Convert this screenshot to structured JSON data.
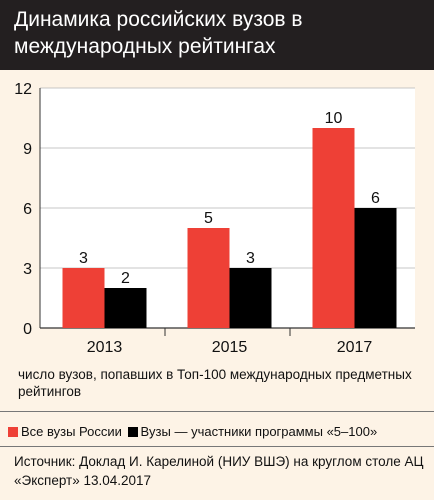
{
  "title": "Динамика российских вузов в международных рейтингах",
  "chart_data": {
    "type": "bar",
    "categories": [
      "2013",
      "2015",
      "2017"
    ],
    "series": [
      {
        "name": "Все вузы России",
        "values": [
          3,
          5,
          10
        ],
        "color": "#ee4036"
      },
      {
        "name": "Вузы — участники программы «5–100»",
        "values": [
          2,
          3,
          6
        ],
        "color": "#000000"
      }
    ],
    "ylim": [
      0,
      12
    ],
    "yticks": [
      0,
      3,
      6,
      9,
      12
    ],
    "xlabel": "",
    "ylabel": "",
    "grid": true,
    "legend_position": "bottom"
  },
  "note": "число вузов, попавших в Топ-100 международных предметных рейтингов",
  "legend": {
    "items": [
      {
        "label": "Все вузы России",
        "color": "#ee4036"
      },
      {
        "label": "Вузы — участники программы «5–100»",
        "color": "#000000"
      }
    ]
  },
  "source": "Источник: Доклад И. Карелиной (НИУ ВШЭ) на круглом столе АЦ «Эксперт» 13.04.2017"
}
